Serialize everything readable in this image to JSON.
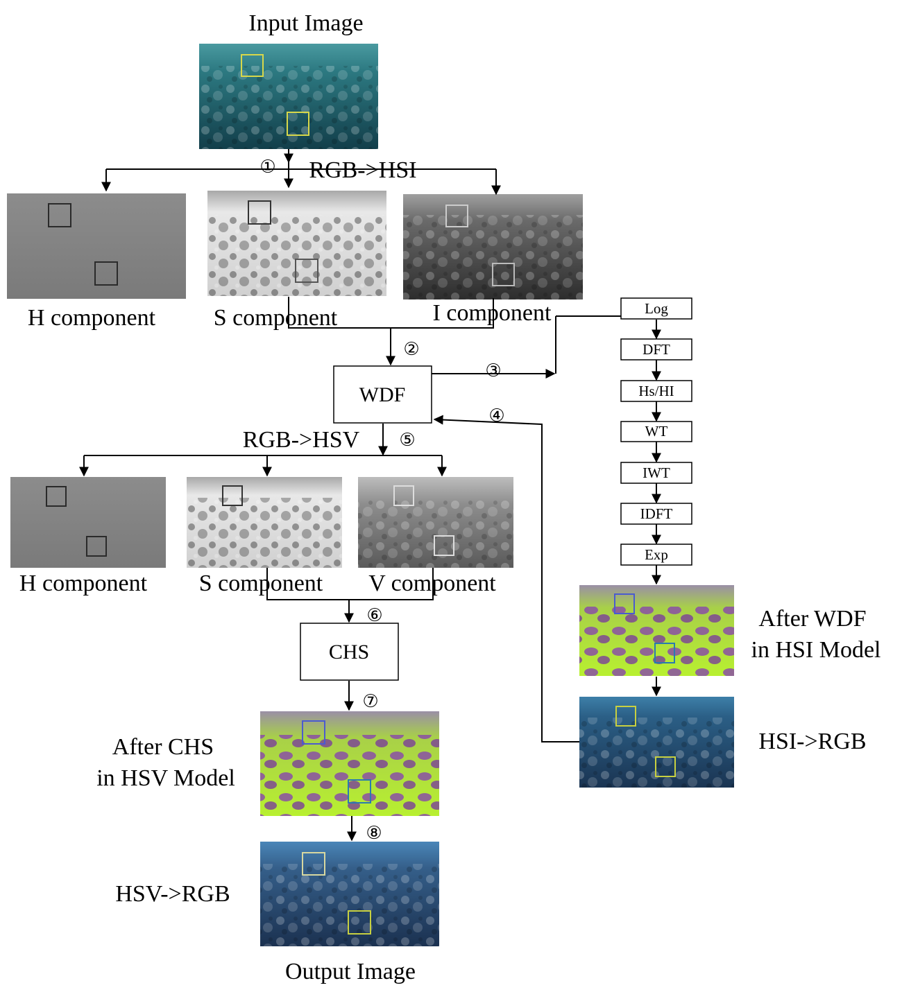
{
  "labels": {
    "input_image": "Input Image",
    "output_image": "Output Image",
    "rgb_hsi": "RGB->HSI",
    "rgb_hsv": "RGB->HSV",
    "hsi_h": "H component",
    "hsi_s": "S component",
    "hsi_i": "I component",
    "hsv_h": "H component",
    "hsv_s": "S component",
    "hsv_v": "V component",
    "after_wdf_1": "After WDF",
    "after_wdf_2": "in HSI Model",
    "hsi_rgb": "HSI->RGB",
    "after_chs_1": "After CHS",
    "after_chs_2": "in HSV Model",
    "hsv_rgb": "HSV->RGB"
  },
  "blocks": {
    "wdf": "WDF",
    "chs": "CHS"
  },
  "pipeline": [
    "Log",
    "DFT",
    "Hs/HI",
    "WT",
    "IWT",
    "IDFT",
    "Exp"
  ],
  "steps": [
    "①",
    "②",
    "③",
    "④",
    "⑤",
    "⑥",
    "⑦",
    "⑧"
  ],
  "colors": {
    "underwater_teal": "#2f7f86",
    "underwater_blue": "#3c6e9c",
    "false_color_green": "#b6f02a",
    "false_color_purple": "#8a4fa6",
    "marker_yellow": "#d8d84a"
  }
}
